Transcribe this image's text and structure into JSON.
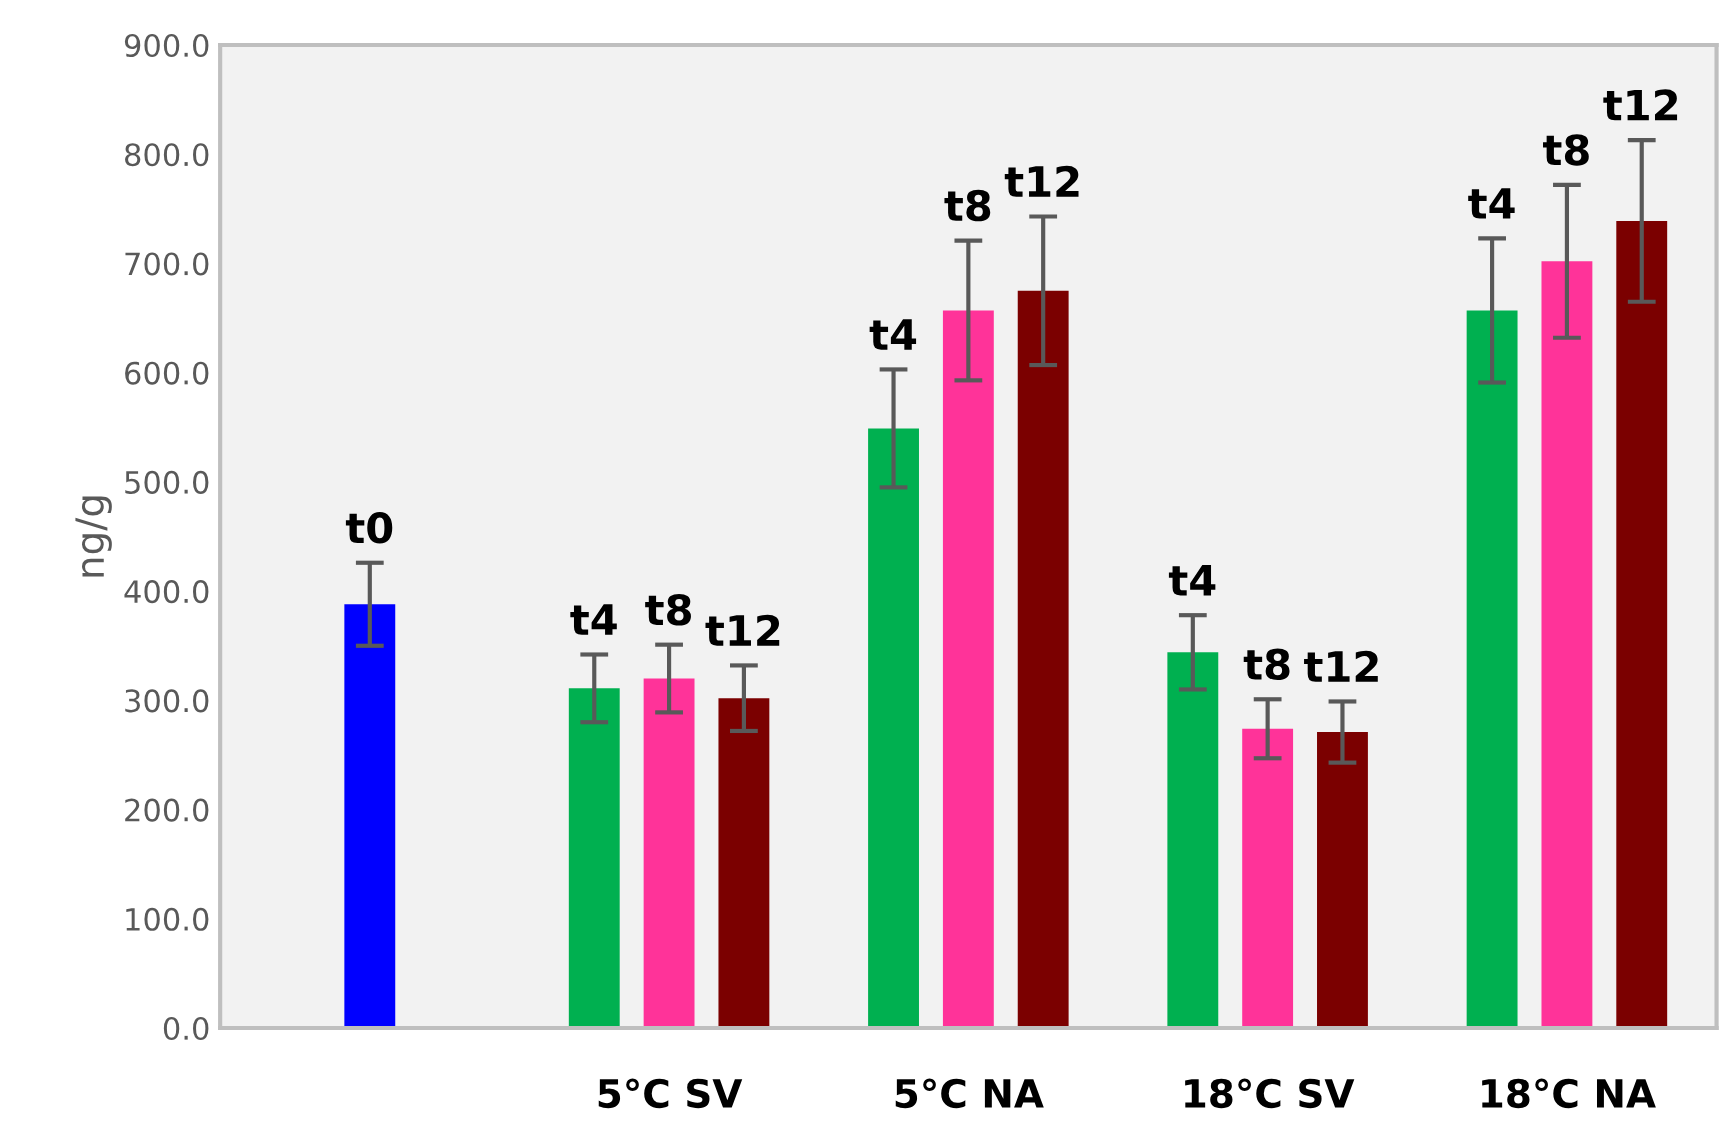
{
  "chart_data": {
    "type": "bar",
    "ylabel": "ng/g",
    "categories": [
      null,
      "5°C SV",
      "5°C NA",
      "18°C SV",
      "18°C NA"
    ],
    "series": [
      {
        "name": "t0",
        "color": "#0000ff",
        "values": [
          388,
          null,
          null,
          null,
          null
        ],
        "errors": [
          38,
          null,
          null,
          null,
          null
        ]
      },
      {
        "name": "t4",
        "color": "#00b050",
        "values": [
          null,
          311,
          549,
          344,
          657
        ],
        "errors": [
          null,
          31,
          54,
          34,
          66
        ]
      },
      {
        "name": "t8",
        "color": "#ff3399",
        "values": [
          null,
          320,
          657,
          274,
          702
        ],
        "errors": [
          null,
          31,
          64,
          27,
          70
        ]
      },
      {
        "name": "t12",
        "color": "#7b0000",
        "values": [
          null,
          302,
          675,
          271,
          739
        ],
        "errors": [
          null,
          30,
          68,
          28,
          74
        ]
      }
    ],
    "ylim": [
      0,
      900
    ],
    "yticks": [
      {
        "value": 0,
        "label": "0.0"
      },
      {
        "value": 100,
        "label": "100.0"
      },
      {
        "value": 200,
        "label": "200.0"
      },
      {
        "value": 300,
        "label": "300.0"
      },
      {
        "value": 400,
        "label": "400.0"
      },
      {
        "value": 500,
        "label": "500.0"
      },
      {
        "value": 600,
        "label": "600.0"
      },
      {
        "value": 700,
        "label": "700.0"
      },
      {
        "value": 800,
        "label": "800.0"
      },
      {
        "value": 900,
        "label": "900.0"
      }
    ],
    "grid": false,
    "legend": false
  }
}
